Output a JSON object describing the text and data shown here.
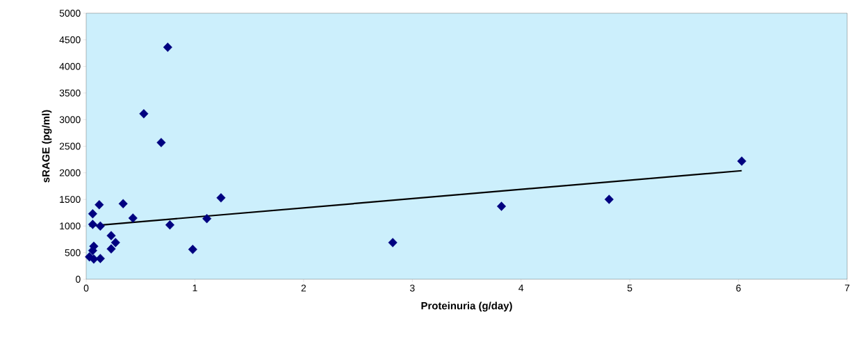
{
  "chart_data": {
    "type": "scatter",
    "xlabel": "Proteinuria (g/day)",
    "ylabel": "sRAGE (pg/ml)",
    "xlim": [
      0,
      7
    ],
    "xticks": [
      0,
      1,
      2,
      3,
      4,
      5,
      6,
      7
    ],
    "ylim": [
      0,
      5000
    ],
    "yticks": [
      0,
      500,
      1000,
      1500,
      2000,
      2500,
      3000,
      3500,
      4000,
      4500,
      5000
    ],
    "grid": false,
    "series": [
      {
        "marker": "diamond",
        "color": "#000080",
        "x": [
          0.75,
          0.53,
          0.69,
          1.24,
          0.34,
          0.12,
          0.06,
          0.43,
          1.11,
          0.06,
          0.13,
          0.77,
          0.23,
          0.27,
          0.23,
          0.98,
          0.07,
          0.06,
          0.03,
          0.07,
          0.13,
          2.82,
          3.82,
          4.81,
          6.03
        ],
        "values": [
          4360,
          3110,
          2570,
          1530,
          1420,
          1400,
          1230,
          1150,
          1140,
          1030,
          1000,
          1020,
          820,
          690,
          570,
          560,
          620,
          540,
          420,
          380,
          390,
          690,
          1370,
          1500,
          2220
        ]
      },
      {
        "type": "line",
        "color": "#000000",
        "x": [
          0.03,
          6.03
        ],
        "values": [
          1000,
          2040
        ]
      }
    ]
  }
}
